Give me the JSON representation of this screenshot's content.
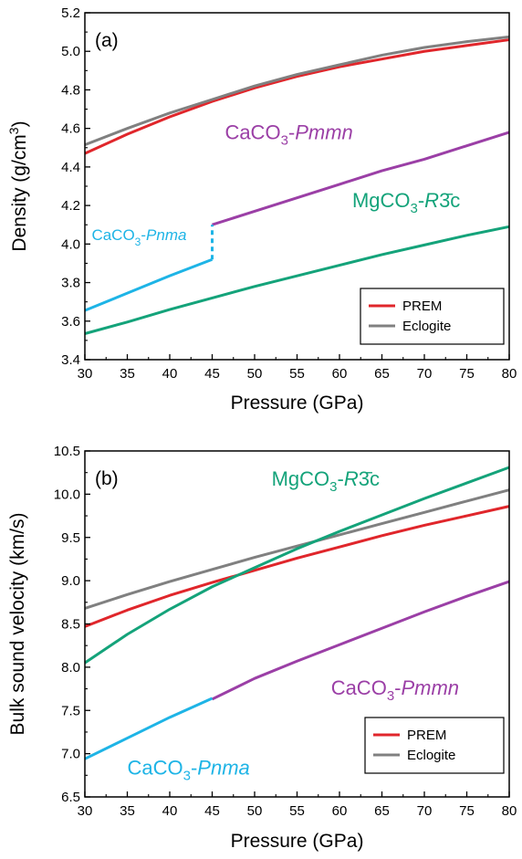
{
  "colors": {
    "prem": "#e0262b",
    "eclogite": "#808080",
    "caco3_pmmn": "#9b3fa6",
    "caco3_pnma": "#1eb4e6",
    "mgco3": "#14a37a"
  },
  "chart_data": [
    {
      "type": "line",
      "panel_label": "(a)",
      "xlabel": "Pressure (GPa)",
      "ylabel": "Density (g/cm3)",
      "ylabel_parts": {
        "main": "Density (g/cm",
        "sup": "3",
        "end": ")"
      },
      "xlim": [
        30,
        80
      ],
      "ylim": [
        3.4,
        5.2
      ],
      "xticks": [
        "30",
        "35",
        "40",
        "45",
        "50",
        "55",
        "60",
        "65",
        "70",
        "75",
        "80"
      ],
      "yticks": [
        "3.4",
        "3.6",
        "3.8",
        "4.0",
        "4.2",
        "4.4",
        "4.6",
        "4.8",
        "5.0",
        "5.2"
      ],
      "legend": {
        "position": "bottom-right",
        "entries": [
          "PREM",
          "Eclogite"
        ]
      },
      "series": [
        {
          "name": "PREM",
          "color_key": "prem",
          "x": [
            30,
            35,
            40,
            45,
            50,
            55,
            60,
            65,
            70,
            75,
            80
          ],
          "y": [
            4.47,
            4.57,
            4.66,
            4.74,
            4.81,
            4.87,
            4.92,
            4.96,
            5.0,
            5.03,
            5.06
          ]
        },
        {
          "name": "Eclogite",
          "color_key": "eclogite",
          "x": [
            30,
            35,
            40,
            45,
            50,
            55,
            60,
            65,
            70,
            75,
            80
          ],
          "y": [
            4.515,
            4.6,
            4.68,
            4.75,
            4.82,
            4.88,
            4.93,
            4.98,
            5.02,
            5.05,
            5.075
          ]
        },
        {
          "name": "CaCO3-Pmmn",
          "color_key": "caco3_pmmn",
          "x": [
            45,
            50,
            55,
            60,
            65,
            70,
            75,
            80
          ],
          "y": [
            4.1,
            4.17,
            4.24,
            4.31,
            4.38,
            4.44,
            4.51,
            4.58
          ]
        },
        {
          "name": "CaCO3-Pnma",
          "color_key": "caco3_pnma",
          "x": [
            30,
            35,
            40,
            45
          ],
          "y": [
            3.655,
            3.745,
            3.835,
            3.92
          ]
        },
        {
          "name": "MgCO3-R3c",
          "color_key": "mgco3",
          "x": [
            30,
            35,
            40,
            45,
            50,
            55,
            60,
            65,
            70,
            75,
            80
          ],
          "y": [
            3.535,
            3.595,
            3.66,
            3.72,
            3.78,
            3.835,
            3.89,
            3.945,
            3.995,
            4.045,
            4.09
          ]
        }
      ],
      "transition": {
        "x": 45,
        "y_from": 3.92,
        "y_to": 4.1,
        "color_key": "caco3_pnma",
        "style": "dashed"
      },
      "annotations": [
        {
          "base": "CaCO",
          "sub": "3",
          "rest": "-",
          "italic": "Pmmn",
          "tail": "",
          "color_key": "caco3_pmmn",
          "x": 46.5,
          "y": 4.545,
          "size": "large"
        },
        {
          "base": "MgCO",
          "sub": "3",
          "rest": "-",
          "italic": "R",
          "tail": "3̄c",
          "color_key": "mgco3",
          "x": 61.5,
          "y": 4.19,
          "size": "large"
        },
        {
          "base": "CaCO",
          "sub": "3",
          "rest": "-",
          "italic": "Pnma",
          "tail": "",
          "color_key": "caco3_pnma",
          "x": 30.8,
          "y": 4.02,
          "size": "small"
        }
      ]
    },
    {
      "type": "line",
      "panel_label": "(b)",
      "xlabel": "Pressure (GPa)",
      "ylabel": "Bulk sound velocity (km/s)",
      "xlim": [
        30,
        80
      ],
      "ylim": [
        6.5,
        10.5
      ],
      "xticks": [
        "30",
        "35",
        "40",
        "45",
        "50",
        "55",
        "60",
        "65",
        "70",
        "75",
        "80"
      ],
      "yticks": [
        "6.5",
        "7.0",
        "7.5",
        "8.0",
        "8.5",
        "9.0",
        "9.5",
        "10.0",
        "10.5"
      ],
      "legend": {
        "position": "bottom-right",
        "entries": [
          "PREM",
          "Eclogite"
        ]
      },
      "series": [
        {
          "name": "PREM",
          "color_key": "prem",
          "x": [
            30,
            35,
            40,
            45,
            50,
            55,
            60,
            65,
            70,
            75,
            80
          ],
          "y": [
            8.47,
            8.66,
            8.83,
            8.98,
            9.12,
            9.26,
            9.39,
            9.52,
            9.64,
            9.75,
            9.86
          ]
        },
        {
          "name": "Eclogite",
          "color_key": "eclogite",
          "x": [
            30,
            35,
            40,
            45,
            50,
            55,
            60,
            65,
            70,
            75,
            80
          ],
          "y": [
            8.68,
            8.84,
            8.99,
            9.13,
            9.27,
            9.4,
            9.53,
            9.66,
            9.79,
            9.92,
            10.05
          ]
        },
        {
          "name": "MgCO3-R3c",
          "color_key": "mgco3",
          "x": [
            30,
            35,
            40,
            45,
            50,
            55,
            60,
            65,
            70,
            75,
            80
          ],
          "y": [
            8.05,
            8.38,
            8.67,
            8.93,
            9.15,
            9.37,
            9.57,
            9.76,
            9.95,
            10.13,
            10.31
          ]
        },
        {
          "name": "CaCO3-Pmmn",
          "color_key": "caco3_pmmn",
          "x": [
            45,
            50,
            55,
            60,
            65,
            70,
            75,
            80
          ],
          "y": [
            7.63,
            7.87,
            8.07,
            8.26,
            8.45,
            8.64,
            8.82,
            8.99
          ]
        },
        {
          "name": "CaCO3-Pnma",
          "color_key": "caco3_pnma",
          "x": [
            30,
            35,
            40,
            45
          ],
          "y": [
            6.94,
            7.18,
            7.42,
            7.64
          ]
        }
      ],
      "annotations": [
        {
          "base": "MgCO",
          "sub": "3",
          "rest": "-",
          "italic": "R",
          "tail": "3̄c",
          "color_key": "mgco3",
          "x": 52.0,
          "y": 10.1,
          "size": "large"
        },
        {
          "base": "CaCO",
          "sub": "3",
          "rest": "-",
          "italic": "Pmmn",
          "tail": "",
          "color_key": "caco3_pmmn",
          "x": 59.0,
          "y": 7.68,
          "size": "large"
        },
        {
          "base": "CaCO",
          "sub": "3",
          "rest": "-",
          "italic": "Pnma",
          "tail": "",
          "color_key": "caco3_pnma",
          "x": 35.0,
          "y": 6.76,
          "size": "large"
        }
      ]
    }
  ]
}
